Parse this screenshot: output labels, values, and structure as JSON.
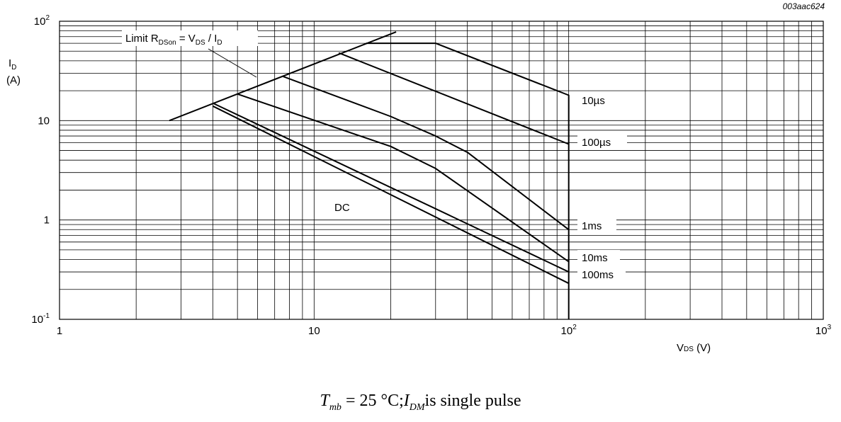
{
  "figure_id": "003aac624",
  "caption": {
    "t_symbol": "T",
    "t_sub": "mb",
    "condition": " = 25 °C;",
    "i_symbol": "I",
    "i_sub": "DM",
    "note": "is single pulse"
  },
  "chart_data": {
    "type": "line",
    "x_scale": "log",
    "y_scale": "log",
    "xlim": [
      1,
      1000
    ],
    "ylim": [
      0.1,
      100
    ],
    "grid": true,
    "xlabel": {
      "main": "V",
      "sub": "DS",
      "unit": " (V)"
    },
    "ylabel": {
      "main": "I",
      "sub": "D",
      "unit": "(A)"
    },
    "x_ticks": [
      {
        "value": 1,
        "base": "1",
        "exp": ""
      },
      {
        "value": 10,
        "base": "10",
        "exp": ""
      },
      {
        "value": 100,
        "base": "10",
        "exp": "2"
      },
      {
        "value": 1000,
        "base": "10",
        "exp": "3"
      }
    ],
    "y_ticks": [
      {
        "value": 0.1,
        "base": "10",
        "exp": "-1"
      },
      {
        "value": 1,
        "base": "1",
        "exp": ""
      },
      {
        "value": 10,
        "base": "10",
        "exp": ""
      },
      {
        "value": 100,
        "base": "10",
        "exp": "2"
      }
    ],
    "limit_annotation": {
      "prefix": "Limit R",
      "sub1": "DSon",
      "mid": " = V",
      "sub2": "DS",
      "mid2": " / I",
      "sub3": "D"
    },
    "limit_line": [
      [
        2.7,
        10
      ],
      [
        21,
        78
      ]
    ],
    "series": [
      {
        "name": "10µs",
        "points": [
          [
            16,
            60
          ],
          [
            30,
            60
          ],
          [
            100,
            18
          ],
          [
            100,
            0.1
          ]
        ]
      },
      {
        "name": "100µs",
        "points": [
          [
            12.5,
            48
          ],
          [
            100,
            5.8
          ]
        ]
      },
      {
        "name": "1ms",
        "points": [
          [
            7.5,
            28
          ],
          [
            20,
            11
          ],
          [
            30,
            7
          ],
          [
            40,
            4.8
          ],
          [
            100,
            0.8
          ]
        ]
      },
      {
        "name": "10ms",
        "points": [
          [
            5,
            18.5
          ],
          [
            20,
            5.5
          ],
          [
            30,
            3.3
          ],
          [
            100,
            0.38
          ]
        ]
      },
      {
        "name": "100ms",
        "points": [
          [
            4,
            15
          ],
          [
            100,
            0.3
          ]
        ]
      },
      {
        "name": "DC",
        "points": [
          [
            4,
            14
          ],
          [
            100,
            0.23
          ]
        ]
      }
    ],
    "series_labels": [
      "10µs",
      "100µs",
      "1ms",
      "10ms",
      "100ms"
    ],
    "dc_label": "DC"
  }
}
